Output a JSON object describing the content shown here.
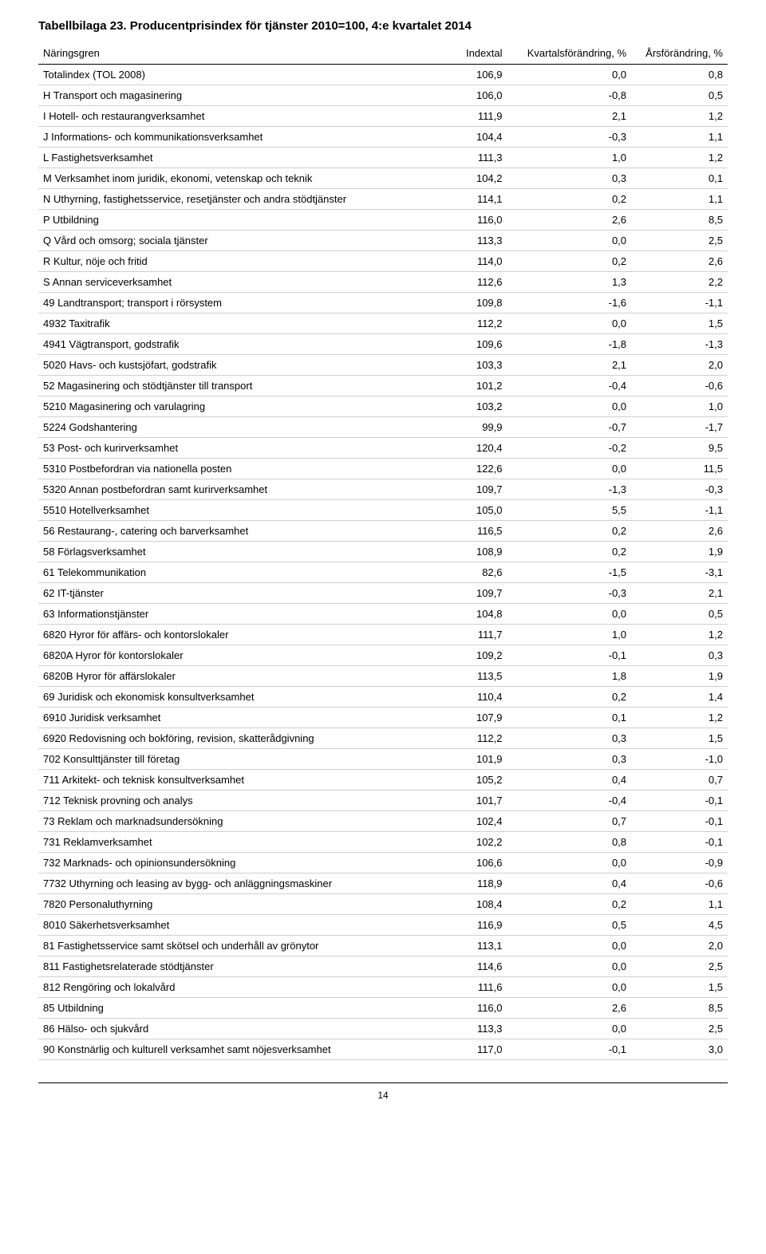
{
  "title": "Tabellbilaga 23. Producentprisindex för tjänster 2010=100, 4:e kvartalet 2014",
  "table": {
    "type": "table",
    "text_color": "#000000",
    "background_color": "#ffffff",
    "row_border_color": "#cfcfcf",
    "header_border_color": "#000000",
    "font_family": "Arial",
    "font_size_pt": 10,
    "columns": [
      {
        "key": "label",
        "header": "Näringsgren",
        "align": "left",
        "width_pct": 56
      },
      {
        "key": "indextal",
        "header": "Indextal",
        "align": "right",
        "width_pct": 12
      },
      {
        "key": "kvartal",
        "header": "Kvartalsförändring, %",
        "align": "right",
        "width_pct": 18
      },
      {
        "key": "ar",
        "header": "Årsförändring, %",
        "align": "right",
        "width_pct": 14
      }
    ],
    "rows": [
      {
        "label": "Totalindex (TOL 2008)",
        "indextal": "106,9",
        "kvartal": "0,0",
        "ar": "0,8"
      },
      {
        "label": "H Transport och magasinering",
        "indextal": "106,0",
        "kvartal": "-0,8",
        "ar": "0,5"
      },
      {
        "label": "I Hotell- och restaurangverksamhet",
        "indextal": "111,9",
        "kvartal": "2,1",
        "ar": "1,2"
      },
      {
        "label": "J Informations- och kommunikationsverksamhet",
        "indextal": "104,4",
        "kvartal": "-0,3",
        "ar": "1,1"
      },
      {
        "label": "L Fastighetsverksamhet",
        "indextal": "111,3",
        "kvartal": "1,0",
        "ar": "1,2"
      },
      {
        "label": "M Verksamhet inom juridik, ekonomi, vetenskap och teknik",
        "indextal": "104,2",
        "kvartal": "0,3",
        "ar": "0,1"
      },
      {
        "label": "N Uthyrning, fastighetsservice, resetjänster och andra stödtjänster",
        "indextal": "114,1",
        "kvartal": "0,2",
        "ar": "1,1"
      },
      {
        "label": "P Utbildning",
        "indextal": "116,0",
        "kvartal": "2,6",
        "ar": "8,5"
      },
      {
        "label": "Q Vård och omsorg; sociala tjänster",
        "indextal": "113,3",
        "kvartal": "0,0",
        "ar": "2,5"
      },
      {
        "label": "R Kultur, nöje och fritid",
        "indextal": "114,0",
        "kvartal": "0,2",
        "ar": "2,6"
      },
      {
        "label": "S Annan serviceverksamhet",
        "indextal": "112,6",
        "kvartal": "1,3",
        "ar": "2,2"
      },
      {
        "label": "49 Landtransport; transport i rörsystem",
        "indextal": "109,8",
        "kvartal": "-1,6",
        "ar": "-1,1"
      },
      {
        "label": "4932 Taxitrafik",
        "indextal": "112,2",
        "kvartal": "0,0",
        "ar": "1,5"
      },
      {
        "label": "4941 Vägtransport, godstrafik",
        "indextal": "109,6",
        "kvartal": "-1,8",
        "ar": "-1,3"
      },
      {
        "label": "5020 Havs- och kustsjöfart, godstrafik",
        "indextal": "103,3",
        "kvartal": "2,1",
        "ar": "2,0"
      },
      {
        "label": "52 Magasinering och stödtjänster till transport",
        "indextal": "101,2",
        "kvartal": "-0,4",
        "ar": "-0,6"
      },
      {
        "label": "5210 Magasinering och varulagring",
        "indextal": "103,2",
        "kvartal": "0,0",
        "ar": "1,0"
      },
      {
        "label": "5224 Godshantering",
        "indextal": "99,9",
        "kvartal": "-0,7",
        "ar": "-1,7"
      },
      {
        "label": "53 Post- och kurirverksamhet",
        "indextal": "120,4",
        "kvartal": "-0,2",
        "ar": "9,5"
      },
      {
        "label": "5310 Postbefordran via nationella posten",
        "indextal": "122,6",
        "kvartal": "0,0",
        "ar": "11,5"
      },
      {
        "label": "5320 Annan postbefordran samt kurirverksamhet",
        "indextal": "109,7",
        "kvartal": "-1,3",
        "ar": "-0,3"
      },
      {
        "label": "5510 Hotellverksamhet",
        "indextal": "105,0",
        "kvartal": "5,5",
        "ar": "-1,1"
      },
      {
        "label": "56 Restaurang-, catering och barverksamhet",
        "indextal": "116,5",
        "kvartal": "0,2",
        "ar": "2,6"
      },
      {
        "label": "58 Förlagsverksamhet",
        "indextal": "108,9",
        "kvartal": "0,2",
        "ar": "1,9"
      },
      {
        "label": "61 Telekommunikation",
        "indextal": "82,6",
        "kvartal": "-1,5",
        "ar": "-3,1"
      },
      {
        "label": "62 IT-tjänster",
        "indextal": "109,7",
        "kvartal": "-0,3",
        "ar": "2,1"
      },
      {
        "label": "63 Informationstjänster",
        "indextal": "104,8",
        "kvartal": "0,0",
        "ar": "0,5"
      },
      {
        "label": "6820 Hyror för affärs- och kontorslokaler",
        "indextal": "111,7",
        "kvartal": "1,0",
        "ar": "1,2"
      },
      {
        "label": "6820A Hyror för kontorslokaler",
        "indextal": "109,2",
        "kvartal": "-0,1",
        "ar": "0,3"
      },
      {
        "label": "6820B Hyror för affärslokaler",
        "indextal": "113,5",
        "kvartal": "1,8",
        "ar": "1,9"
      },
      {
        "label": "69 Juridisk och ekonomisk konsultverksamhet",
        "indextal": "110,4",
        "kvartal": "0,2",
        "ar": "1,4"
      },
      {
        "label": "6910 Juridisk verksamhet",
        "indextal": "107,9",
        "kvartal": "0,1",
        "ar": "1,2"
      },
      {
        "label": "6920 Redovisning och bokföring, revision, skatterådgivning",
        "indextal": "112,2",
        "kvartal": "0,3",
        "ar": "1,5"
      },
      {
        "label": "702 Konsulttjänster till företag",
        "indextal": "101,9",
        "kvartal": "0,3",
        "ar": "-1,0"
      },
      {
        "label": "711 Arkitekt- och teknisk konsultverksamhet",
        "indextal": "105,2",
        "kvartal": "0,4",
        "ar": "0,7"
      },
      {
        "label": "712 Teknisk provning och analys",
        "indextal": "101,7",
        "kvartal": "-0,4",
        "ar": "-0,1"
      },
      {
        "label": "73 Reklam och marknadsundersökning",
        "indextal": "102,4",
        "kvartal": "0,7",
        "ar": "-0,1"
      },
      {
        "label": "731 Reklamverksamhet",
        "indextal": "102,2",
        "kvartal": "0,8",
        "ar": "-0,1"
      },
      {
        "label": "732 Marknads- och opinionsundersökning",
        "indextal": "106,6",
        "kvartal": "0,0",
        "ar": "-0,9"
      },
      {
        "label": "7732 Uthyrning och leasing av bygg- och anläggningsmaskiner",
        "indextal": "118,9",
        "kvartal": "0,4",
        "ar": "-0,6"
      },
      {
        "label": "7820 Personaluthyrning",
        "indextal": "108,4",
        "kvartal": "0,2",
        "ar": "1,1"
      },
      {
        "label": "8010 Säkerhetsverksamhet",
        "indextal": "116,9",
        "kvartal": "0,5",
        "ar": "4,5"
      },
      {
        "label": "81 Fastighetsservice samt skötsel och underhåll av grönytor",
        "indextal": "113,1",
        "kvartal": "0,0",
        "ar": "2,0"
      },
      {
        "label": "811 Fastighetsrelaterade stödtjänster",
        "indextal": "114,6",
        "kvartal": "0,0",
        "ar": "2,5"
      },
      {
        "label": "812 Rengöring och lokalvård",
        "indextal": "111,6",
        "kvartal": "0,0",
        "ar": "1,5"
      },
      {
        "label": "85 Utbildning",
        "indextal": "116,0",
        "kvartal": "2,6",
        "ar": "8,5"
      },
      {
        "label": "86 Hälso- och sjukvård",
        "indextal": "113,3",
        "kvartal": "0,0",
        "ar": "2,5"
      },
      {
        "label": "90 Konstnärlig och kulturell verksamhet samt nöjesverksamhet",
        "indextal": "117,0",
        "kvartal": "-0,1",
        "ar": "3,0"
      }
    ]
  },
  "page_number": "14"
}
